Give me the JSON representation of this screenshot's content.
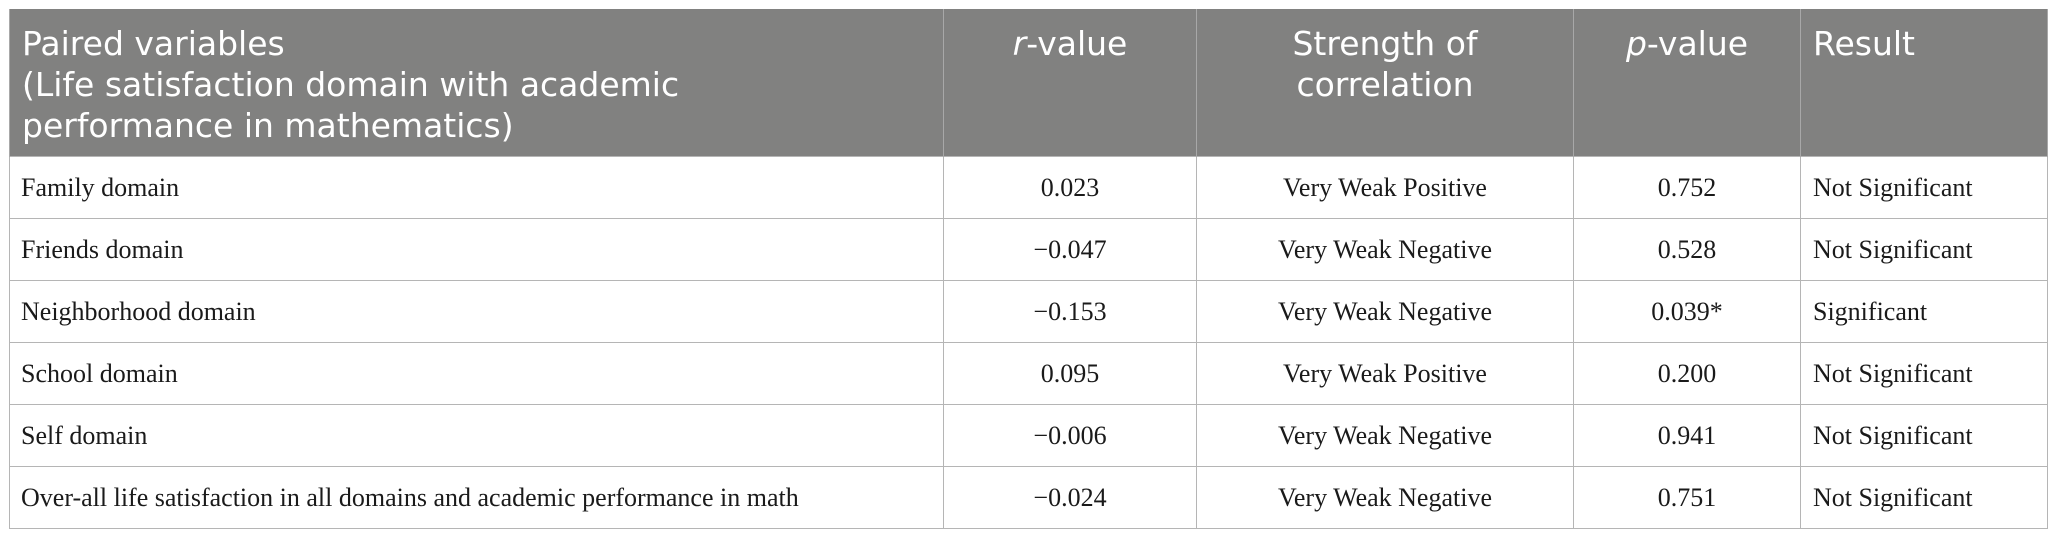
{
  "table": {
    "headers": {
      "col1": {
        "line1": "Paired variables",
        "line2": "(Life satisfaction domain with academic",
        "line3": "performance in mathematics)"
      },
      "col2": {
        "italic": "r",
        "rest": "-value"
      },
      "col3": {
        "line1": "Strength of",
        "line2": "correlation"
      },
      "col4": {
        "italic": "p",
        "rest": "-value"
      },
      "col5": "Result"
    },
    "rows": [
      {
        "variable": "Family domain",
        "r": "0.023",
        "strength": "Very Weak Positive",
        "p": "0.752",
        "result": "Not Significant"
      },
      {
        "variable": "Friends domain",
        "r": "−0.047",
        "strength": "Very Weak Negative",
        "p": "0.528",
        "result": "Not Significant"
      },
      {
        "variable": "Neighborhood domain",
        "r": "−0.153",
        "strength": "Very Weak Negative",
        "p": "0.039*",
        "result": "Significant"
      },
      {
        "variable": "School domain",
        "r": "0.095",
        "strength": "Very Weak Positive",
        "p": "0.200",
        "result": "Not Significant"
      },
      {
        "variable": "Self domain",
        "r": "−0.006",
        "strength": "Very Weak Negative",
        "p": "0.941",
        "result": "Not Significant"
      },
      {
        "variable": "Over-all life satisfaction in all domains and academic performance in math",
        "r": "−0.024",
        "strength": "Very Weak Negative",
        "p": "0.751",
        "result": "Not Significant"
      }
    ]
  },
  "colors": {
    "header_bg": "#818180",
    "header_text": "#ffffff",
    "grid": "#b5b5b5"
  }
}
